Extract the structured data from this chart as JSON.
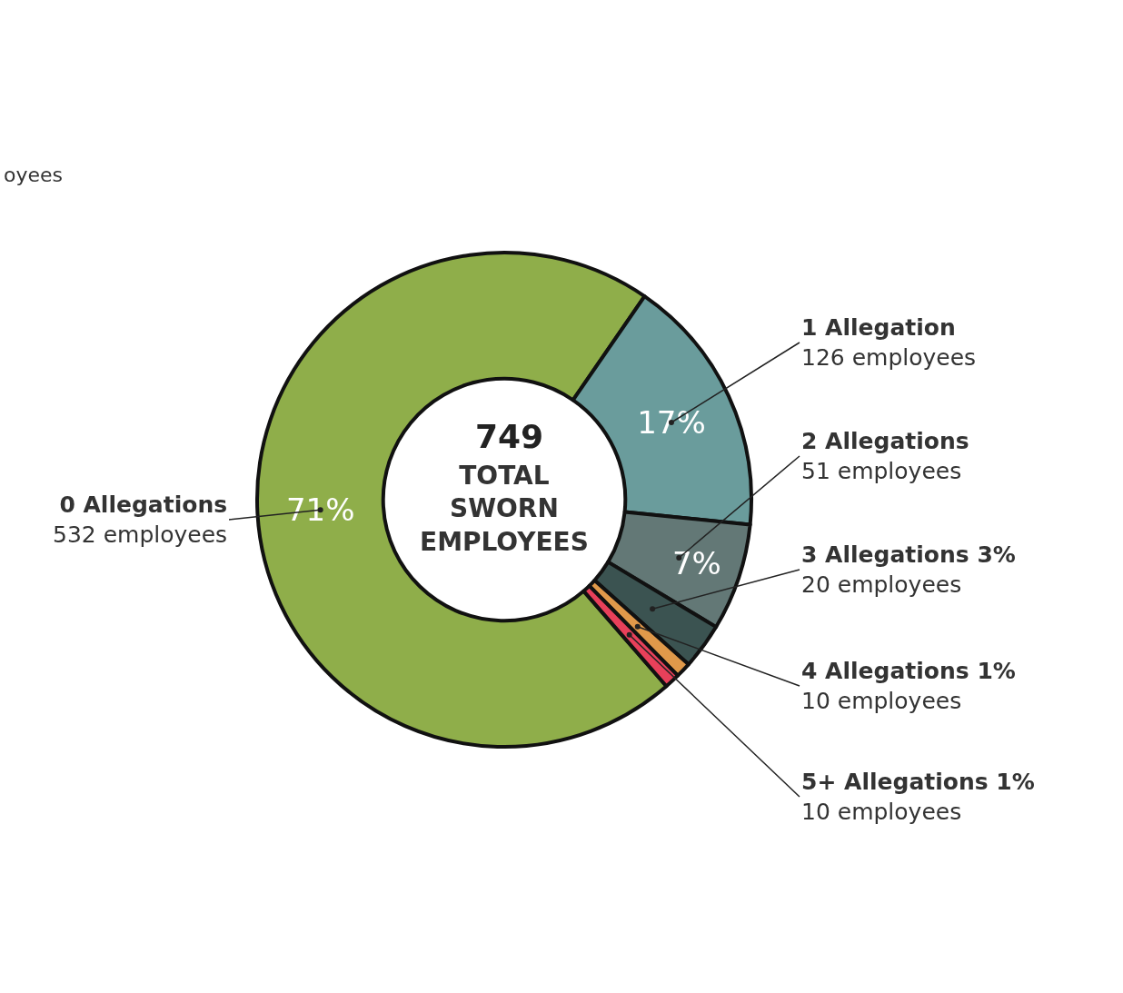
{
  "chart_data": {
    "type": "donut",
    "categories": [
      "0 Allegations\n532 employees",
      "1 Allegation\n126 employees",
      "2 Allegations\n51 employees",
      "3 Allegations 3%\n20 employees",
      "4 Allegations 1%\n10 employees",
      "5+ Allegations 1%\n10 employees"
    ],
    "values": [
      71,
      17,
      7,
      3,
      1,
      1
    ],
    "value_labels": [
      "71%",
      "17%",
      "7%",
      null,
      null,
      null
    ],
    "colors": [
      "#8fae4a",
      "#6a9c9c",
      "#637876",
      "#3b5351",
      "#e0994a",
      "#e8405a"
    ],
    "annotations": [
      "749",
      "TOTAL\nSWORN\nEMPLOYEES",
      "oyees"
    ],
    "legend": false
  }
}
